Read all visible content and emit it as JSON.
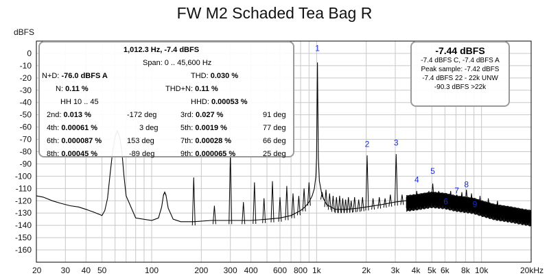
{
  "chart_data": {
    "type": "line",
    "title": "FW M2 Schaded Tea Bag R",
    "ylabel": "dBFS",
    "xlabel": "",
    "x_scale": "log",
    "xlim": [
      20,
      20000
    ],
    "ylim": [
      -170,
      10
    ],
    "grid": true,
    "yticks": [
      0,
      -10,
      -20,
      -30,
      -40,
      -50,
      -60,
      -70,
      -80,
      -90,
      -100,
      -110,
      -120,
      -130,
      -140,
      -150,
      -160
    ],
    "xticks": [
      {
        "v": 20,
        "label": "20"
      },
      {
        "v": 30,
        "label": "30"
      },
      {
        "v": 40,
        "label": "40"
      },
      {
        "v": 50,
        "label": "50"
      },
      {
        "v": 100,
        "label": "100"
      },
      {
        "v": 200,
        "label": "200"
      },
      {
        "v": 300,
        "label": "300"
      },
      {
        "v": 400,
        "label": "400"
      },
      {
        "v": 600,
        "label": "600"
      },
      {
        "v": 800,
        "label": "800"
      },
      {
        "v": 1000,
        "label": "1k"
      },
      {
        "v": 2000,
        "label": "2k"
      },
      {
        "v": 3000,
        "label": "3k"
      },
      {
        "v": 4000,
        "label": "4k"
      },
      {
        "v": 5000,
        "label": "5k"
      },
      {
        "v": 6000,
        "label": "6k"
      },
      {
        "v": 8000,
        "label": "8k"
      },
      {
        "v": 10000,
        "label": "10k"
      },
      {
        "v": 20000,
        "label": "20kHz"
      }
    ],
    "series": [
      {
        "x": [
          20,
          22,
          25,
          28,
          32,
          36,
          40,
          44,
          48,
          50,
          52,
          54,
          56,
          58,
          60,
          62,
          64,
          66,
          68,
          70,
          80,
          100,
          110,
          115,
          118,
          120,
          122,
          126,
          135,
          150,
          180,
          230,
          300,
          400,
          500,
          600,
          700,
          800,
          850,
          900,
          940,
          970,
          990,
          1000,
          1012,
          1025,
          1040,
          1080,
          1150,
          1300,
          1500,
          1800,
          2000,
          2500,
          3000,
          4000,
          5000,
          6000,
          7000,
          8000,
          9000,
          10000,
          12000,
          15000,
          18000,
          20000
        ],
        "y": [
          -116,
          -117,
          -120,
          -122,
          -124,
          -125,
          -127,
          -129,
          -131,
          -132,
          -128,
          -118,
          -98,
          -80,
          -68,
          -63,
          -68,
          -80,
          -100,
          -116,
          -134,
          -136,
          -134,
          -125,
          -115,
          -113,
          -115,
          -126,
          -135,
          -137,
          -137,
          -136,
          -136,
          -136,
          -135,
          -134,
          -132,
          -128,
          -125,
          -121,
          -116,
          -110,
          -100,
          -85,
          -7.4,
          -85,
          -104,
          -116,
          -123,
          -127,
          -127,
          -126,
          -125,
          -123,
          -121,
          -119,
          -117,
          -118,
          -120,
          -121,
          -122,
          -124,
          -127,
          -129,
          -131,
          -132
        ],
        "spikes": [
          {
            "f": 120,
            "db": -113
          },
          {
            "f": 180,
            "db": -101
          },
          {
            "f": 240,
            "db": -124
          },
          {
            "f": 300,
            "db": -80
          },
          {
            "f": 360,
            "db": -121
          },
          {
            "f": 420,
            "db": -105
          },
          {
            "f": 480,
            "db": -118
          },
          {
            "f": 540,
            "db": -104
          },
          {
            "f": 600,
            "db": -117
          },
          {
            "f": 660,
            "db": -108
          },
          {
            "f": 720,
            "db": -114
          },
          {
            "f": 780,
            "db": -116
          },
          {
            "f": 840,
            "db": -110
          },
          {
            "f": 900,
            "db": -105
          },
          {
            "f": 1080,
            "db": -113
          },
          {
            "f": 1140,
            "db": -111
          },
          {
            "f": 1200,
            "db": -114
          },
          {
            "f": 1260,
            "db": -116
          },
          {
            "f": 1320,
            "db": -117
          },
          {
            "f": 1380,
            "db": -116
          },
          {
            "f": 1440,
            "db": -118
          },
          {
            "f": 1500,
            "db": -119
          },
          {
            "f": 1560,
            "db": -117
          },
          {
            "f": 1620,
            "db": -120
          },
          {
            "f": 1700,
            "db": -117
          },
          {
            "f": 1800,
            "db": -119
          },
          {
            "f": 1900,
            "db": -117
          },
          {
            "f": 2025,
            "db": -83
          },
          {
            "f": 2200,
            "db": -118
          },
          {
            "f": 2400,
            "db": -117
          },
          {
            "f": 2600,
            "db": -118
          },
          {
            "f": 2800,
            "db": -115
          },
          {
            "f": 3037,
            "db": -82
          },
          {
            "f": 3300,
            "db": -115
          },
          {
            "f": 3600,
            "db": -116
          },
          {
            "f": 4050,
            "db": -112
          },
          {
            "f": 4400,
            "db": -114
          },
          {
            "f": 4800,
            "db": -112
          },
          {
            "f": 5062,
            "db": -106
          },
          {
            "f": 5500,
            "db": -112
          },
          {
            "f": 6075,
            "db": -120
          },
          {
            "f": 6500,
            "db": -112
          },
          {
            "f": 7087,
            "db": -115
          },
          {
            "f": 7600,
            "db": -113
          },
          {
            "f": 8100,
            "db": -111
          },
          {
            "f": 8700,
            "db": -114
          },
          {
            "f": 9111,
            "db": -121
          },
          {
            "f": 9800,
            "db": -116
          },
          {
            "f": 11000,
            "db": -118
          },
          {
            "f": 12500,
            "db": -120
          }
        ]
      }
    ],
    "harmonic_markers": [
      {
        "label": "1",
        "f": 1012,
        "db": 2
      },
      {
        "label": "2",
        "f": 2025,
        "db": -76
      },
      {
        "label": "3",
        "f": 3037,
        "db": -75
      },
      {
        "label": "4",
        "f": 4050,
        "db": -105
      },
      {
        "label": "5",
        "f": 5062,
        "db": -98
      },
      {
        "label": "6",
        "f": 6075,
        "db": -123
      },
      {
        "label": "7",
        "f": 7087,
        "db": -114
      },
      {
        "label": "8",
        "f": 8100,
        "db": -109
      },
      {
        "label": "9",
        "f": 9111,
        "db": -125
      }
    ],
    "colors": {
      "trace": "#000000",
      "grid": "#c8c8c8",
      "marker": "#1a2ad6",
      "axis": "#000000"
    }
  },
  "stats_panel": {
    "header": "1,012.3 Hz, -7.4 dBFS",
    "span": "Span: 0 .. 45,600 Hz",
    "nd_label": "N+D:",
    "nd_value": "-76.0 dBFS A",
    "thd_label": "THD:",
    "thd_value": "0.030 %",
    "n_label": "N:",
    "n_value": "0.11 %",
    "thdn_label": "THD+N:",
    "thdn_value": "0.11 %",
    "hh_label": "HH 10 .. 45",
    "hhd_label": "HHD:",
    "hhd_value": "0.00053 %",
    "harmonics": [
      {
        "label": "2nd:",
        "value": "0.013 %",
        "deg": "-172 deg"
      },
      {
        "label": "3rd:",
        "value": "0.027 %",
        "deg": "91 deg"
      },
      {
        "label": "4th:",
        "value": "0.00061 %",
        "deg": "3 deg"
      },
      {
        "label": "5th:",
        "value": "0.0019 %",
        "deg": "77 deg"
      },
      {
        "label": "6th:",
        "value": "0.000087 %",
        "deg": "153 deg"
      },
      {
        "label": "7th:",
        "value": "0.00028 %",
        "deg": "66 deg"
      },
      {
        "label": "8th:",
        "value": "0.00045 %",
        "deg": "-89 deg"
      },
      {
        "label": "9th:",
        "value": "0.000065 %",
        "deg": "25 deg"
      }
    ]
  },
  "peak_panel": {
    "level": "-7.44 dBFS",
    "lines": [
      "-7.4 dBFS C, -7.4 dBFS A",
      "Peak sample: -7.42 dBFS",
      "-7.4 dBFS 22 - 22k UNW",
      "-90.3 dBFS >22k"
    ]
  }
}
